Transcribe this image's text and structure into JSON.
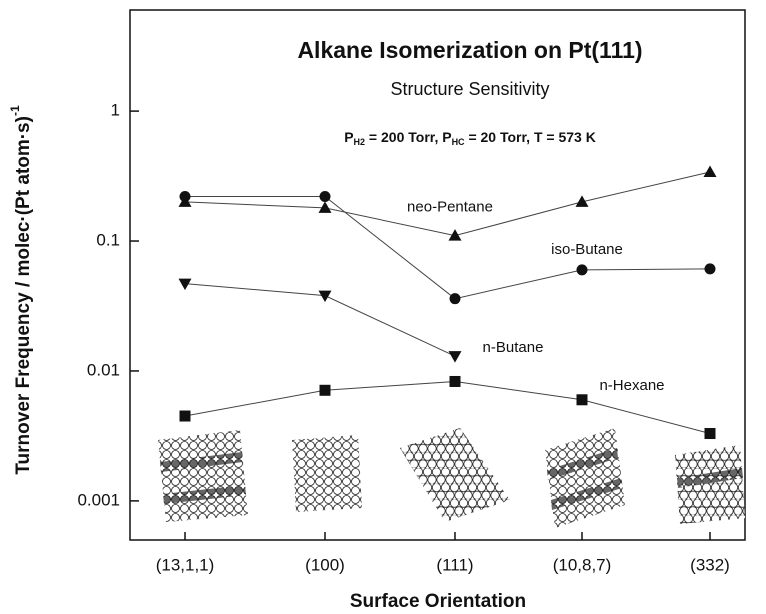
{
  "chart_data": {
    "type": "line",
    "title": "Alkane Isomerization on Pt(111)",
    "subtitle": "Structure Sensitivity",
    "annotation_parts": [
      "P",
      "H2",
      " = 200 Torr, P",
      "HC",
      " = 20 Torr, T = 573 K"
    ],
    "x_label": "Surface Orientation",
    "y_label_parts": [
      "Turnover Frequency / molec·(Pt atom·s)",
      "-1"
    ],
    "categories": [
      "(13,1,1)",
      "(100)",
      "(111)",
      "(10,8,7)",
      "(332)"
    ],
    "log_y": true,
    "ylim": [
      0.0005,
      6
    ],
    "yticks": [
      1,
      0.1,
      0.01,
      0.001
    ],
    "series": [
      {
        "name": "neo-Pentane",
        "color": "#111111",
        "marker": "triangle-up",
        "values": [
          0.2,
          0.18,
          0.11,
          0.2,
          0.34
        ]
      },
      {
        "name": "iso-Butane",
        "color": "#111111",
        "marker": "circle",
        "values": [
          0.22,
          0.22,
          0.036,
          0.06,
          0.061
        ]
      },
      {
        "name": "n-Butane",
        "color": "#111111",
        "marker": "triangle-down",
        "values": [
          0.047,
          0.038,
          0.013,
          null,
          null
        ]
      },
      {
        "name": "n-Hexane",
        "color": "#111111",
        "marker": "square",
        "values": [
          0.0045,
          0.0071,
          0.0083,
          0.006,
          0.0033
        ]
      }
    ]
  }
}
